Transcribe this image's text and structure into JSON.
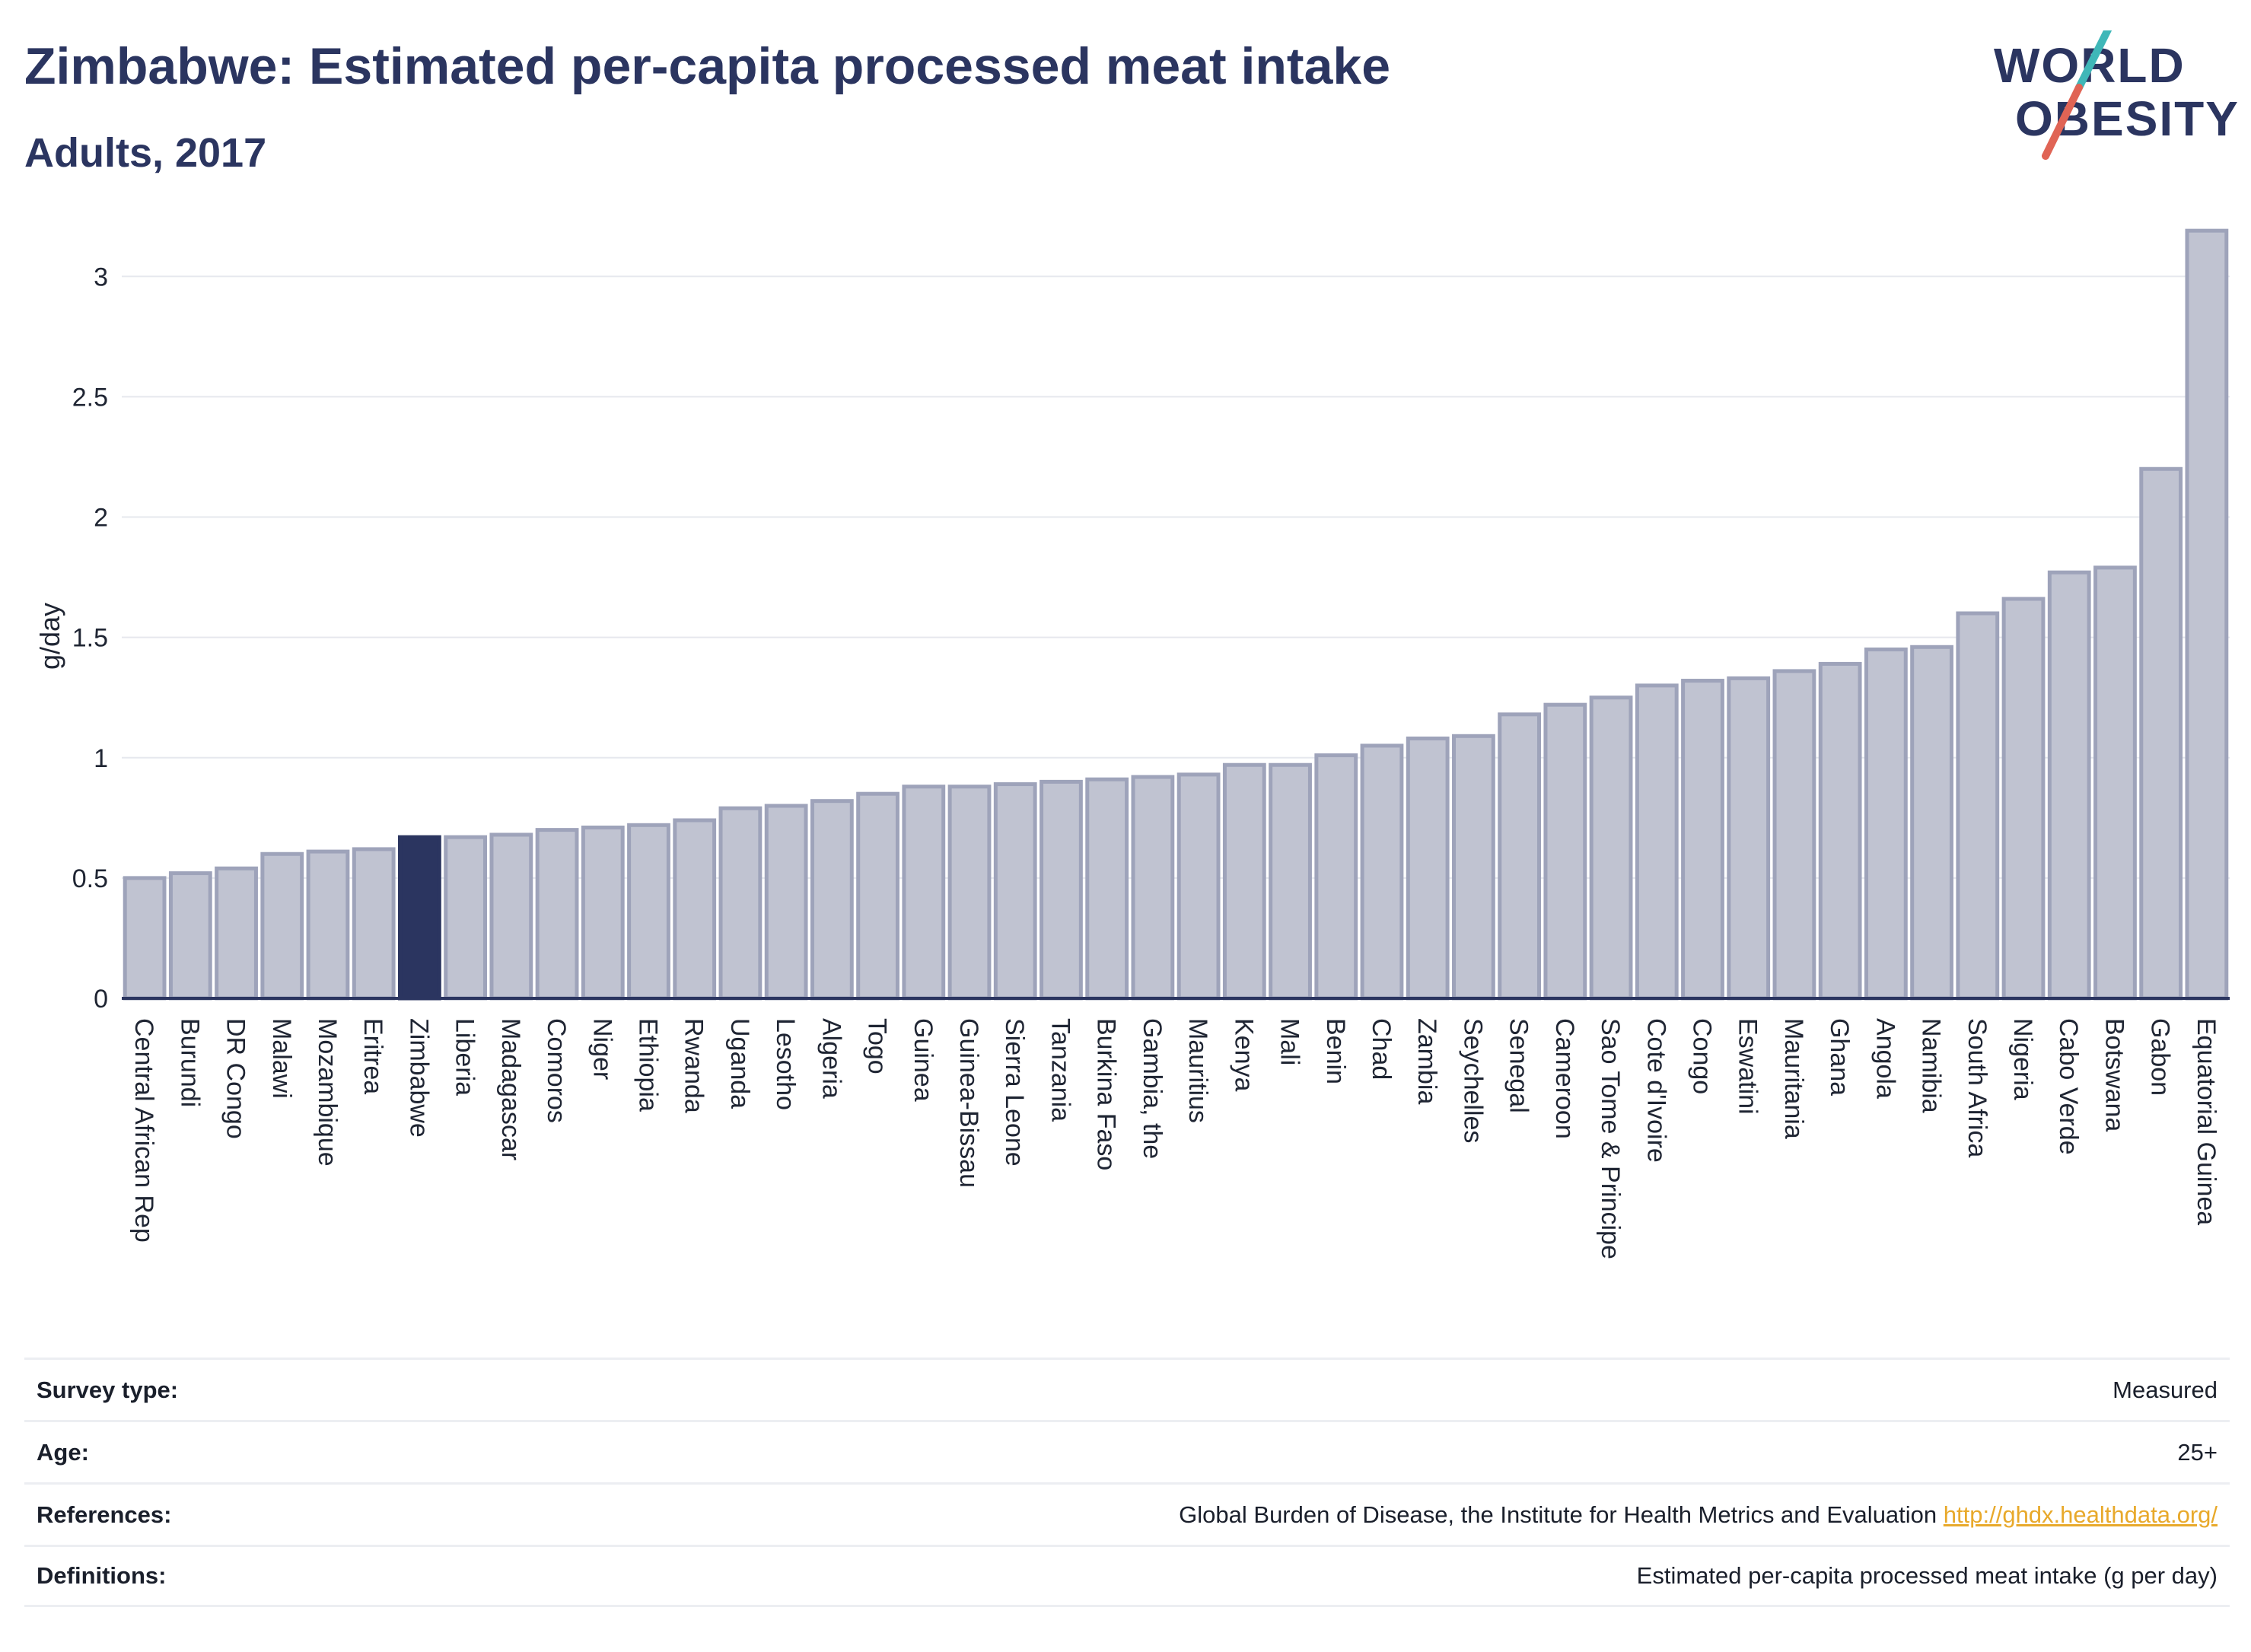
{
  "title": "Zimbabwe: Estimated per-capita processed meat intake",
  "subtitle": "Adults, 2017",
  "logo": {
    "line1": "WORLD",
    "line2": "OBESITY",
    "text_color": "#2b3560",
    "accent_teal": "#3fb7b8",
    "accent_red": "#e06455"
  },
  "colors": {
    "bar_default": "#c0c3d1",
    "bar_border": "#9ea3ba",
    "bar_highlight": "#2b3560",
    "grid": "#e6e8ee",
    "axis": "#2b3560"
  },
  "chart_data": {
    "type": "bar",
    "ylabel": "g/day",
    "xlabel": "",
    "ylim": [
      0,
      3.2
    ],
    "yticks": [
      0,
      0.5,
      1,
      1.5,
      2,
      2.5,
      3
    ],
    "ytick_labels": [
      "0",
      "0.5",
      "1",
      "1.5",
      "2",
      "2.5",
      "3"
    ],
    "highlight": "Zimbabwe",
    "categories": [
      "Central African Rep",
      "Burundi",
      "DR Congo",
      "Malawi",
      "Mozambique",
      "Eritrea",
      "Zimbabwe",
      "Liberia",
      "Madagascar",
      "Comoros",
      "Niger",
      "Ethiopia",
      "Rwanda",
      "Uganda",
      "Lesotho",
      "Algeria",
      "Togo",
      "Guinea",
      "Guinea-Bissau",
      "Sierra Leone",
      "Tanzania",
      "Burkina Faso",
      "Gambia, the",
      "Mauritius",
      "Kenya",
      "Mali",
      "Benin",
      "Chad",
      "Zambia",
      "Seychelles",
      "Senegal",
      "Cameroon",
      "Sao Tome & Principe",
      "Cote d'Ivoire",
      "Congo",
      "Eswatini",
      "Mauritania",
      "Ghana",
      "Angola",
      "Namibia",
      "South Africa",
      "Nigeria",
      "Cabo Verde",
      "Botswana",
      "Gabon",
      "Equatorial Guinea"
    ],
    "values": [
      0.5,
      0.52,
      0.54,
      0.6,
      0.61,
      0.62,
      0.67,
      0.67,
      0.68,
      0.7,
      0.71,
      0.72,
      0.74,
      0.79,
      0.8,
      0.82,
      0.85,
      0.88,
      0.88,
      0.89,
      0.9,
      0.91,
      0.92,
      0.93,
      0.97,
      0.97,
      1.01,
      1.05,
      1.08,
      1.09,
      1.18,
      1.22,
      1.25,
      1.3,
      1.32,
      1.33,
      1.36,
      1.39,
      1.45,
      1.46,
      1.6,
      1.66,
      1.77,
      1.79,
      2.2,
      3.19
    ]
  },
  "info": [
    {
      "label": "Survey type:",
      "value": "Measured"
    },
    {
      "label": "Age:",
      "value": "25+"
    },
    {
      "label": "References:",
      "value": "Global Burden of Disease, the Institute for Health Metrics and Evaluation",
      "link": "http://ghdx.healthdata.org/"
    },
    {
      "label": "Definitions:",
      "value": "Estimated per-capita processed meat intake (g per day)"
    }
  ]
}
